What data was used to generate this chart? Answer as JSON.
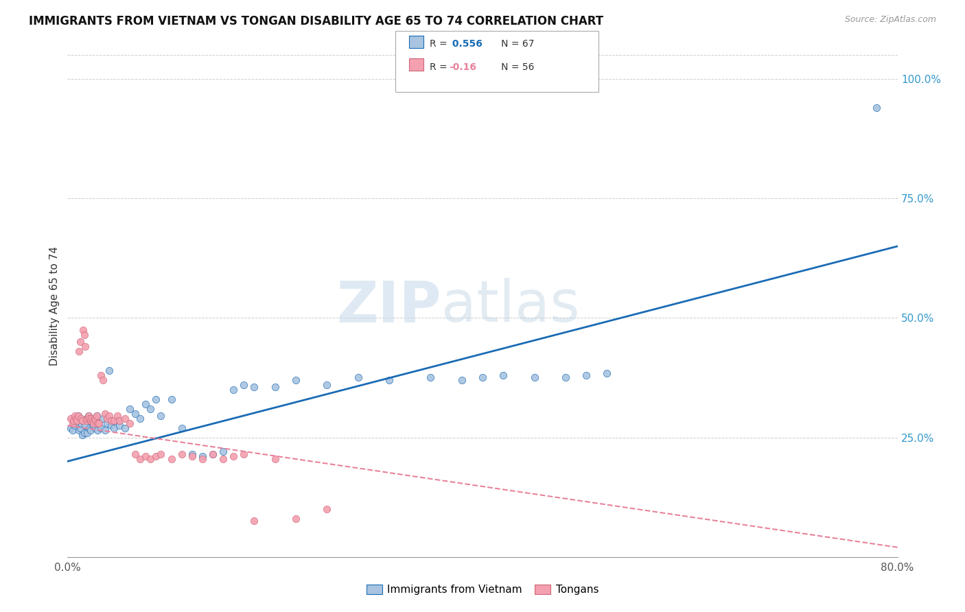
{
  "title": "IMMIGRANTS FROM VIETNAM VS TONGAN DISABILITY AGE 65 TO 74 CORRELATION CHART",
  "source": "Source: ZipAtlas.com",
  "ylabel": "Disability Age 65 to 74",
  "xlim": [
    0.0,
    0.8
  ],
  "ylim": [
    0.0,
    1.05
  ],
  "xtick_positions": [
    0.0,
    0.1,
    0.2,
    0.3,
    0.4,
    0.5,
    0.6,
    0.7,
    0.8
  ],
  "xticklabels": [
    "0.0%",
    "",
    "",
    "",
    "",
    "",
    "",
    "",
    "80.0%"
  ],
  "ytick_positions": [
    0.25,
    0.5,
    0.75,
    1.0
  ],
  "ytick_labels": [
    "25.0%",
    "50.0%",
    "75.0%",
    "100.0%"
  ],
  "vietnam_color": "#a8c4e0",
  "tongan_color": "#f4a0b0",
  "vietnam_line_color": "#1a6bb5",
  "tongan_line_color": "#e8829a",
  "R_vietnam": 0.556,
  "N_vietnam": 67,
  "R_tongan": -0.16,
  "N_tongan": 56,
  "legend_vietnam": "Immigrants from Vietnam",
  "legend_tongan": "Tongans",
  "watermark_zip": "ZIP",
  "watermark_atlas": "atlas",
  "vietnam_line_x0": 0.0,
  "vietnam_line_y0": 0.2,
  "vietnam_line_x1": 0.8,
  "vietnam_line_y1": 0.65,
  "tongan_line_x0": 0.0,
  "tongan_line_y0": 0.275,
  "tongan_line_x1": 0.8,
  "tongan_line_y1": 0.02,
  "vietnam_scatter_x": [
    0.003,
    0.005,
    0.006,
    0.007,
    0.008,
    0.009,
    0.01,
    0.011,
    0.012,
    0.013,
    0.014,
    0.015,
    0.016,
    0.017,
    0.018,
    0.019,
    0.02,
    0.021,
    0.022,
    0.023,
    0.024,
    0.025,
    0.026,
    0.027,
    0.028,
    0.029,
    0.03,
    0.032,
    0.034,
    0.036,
    0.038,
    0.04,
    0.042,
    0.045,
    0.048,
    0.05,
    0.055,
    0.06,
    0.065,
    0.07,
    0.075,
    0.08,
    0.085,
    0.09,
    0.1,
    0.11,
    0.12,
    0.13,
    0.14,
    0.15,
    0.16,
    0.17,
    0.18,
    0.2,
    0.22,
    0.25,
    0.28,
    0.31,
    0.35,
    0.38,
    0.4,
    0.42,
    0.45,
    0.48,
    0.5,
    0.52,
    0.78
  ],
  "vietnam_scatter_y": [
    0.27,
    0.265,
    0.28,
    0.275,
    0.29,
    0.285,
    0.295,
    0.265,
    0.27,
    0.28,
    0.255,
    0.285,
    0.26,
    0.275,
    0.29,
    0.26,
    0.295,
    0.27,
    0.265,
    0.285,
    0.28,
    0.275,
    0.285,
    0.27,
    0.295,
    0.265,
    0.28,
    0.27,
    0.29,
    0.265,
    0.28,
    0.39,
    0.275,
    0.27,
    0.285,
    0.275,
    0.27,
    0.31,
    0.3,
    0.29,
    0.32,
    0.31,
    0.33,
    0.295,
    0.33,
    0.27,
    0.215,
    0.21,
    0.215,
    0.22,
    0.35,
    0.36,
    0.355,
    0.355,
    0.37,
    0.36,
    0.375,
    0.37,
    0.375,
    0.37,
    0.375,
    0.38,
    0.375,
    0.375,
    0.38,
    0.385,
    0.94
  ],
  "tongan_scatter_x": [
    0.003,
    0.005,
    0.006,
    0.007,
    0.008,
    0.009,
    0.01,
    0.011,
    0.012,
    0.013,
    0.014,
    0.015,
    0.016,
    0.017,
    0.018,
    0.019,
    0.02,
    0.021,
    0.022,
    0.023,
    0.024,
    0.025,
    0.026,
    0.027,
    0.028,
    0.029,
    0.03,
    0.032,
    0.034,
    0.036,
    0.038,
    0.04,
    0.042,
    0.045,
    0.048,
    0.05,
    0.055,
    0.06,
    0.065,
    0.07,
    0.075,
    0.08,
    0.085,
    0.09,
    0.1,
    0.11,
    0.12,
    0.13,
    0.14,
    0.15,
    0.16,
    0.17,
    0.18,
    0.2,
    0.22,
    0.25
  ],
  "tongan_scatter_y": [
    0.29,
    0.28,
    0.285,
    0.295,
    0.29,
    0.285,
    0.295,
    0.43,
    0.45,
    0.29,
    0.285,
    0.475,
    0.465,
    0.44,
    0.285,
    0.29,
    0.295,
    0.29,
    0.285,
    0.29,
    0.285,
    0.28,
    0.29,
    0.285,
    0.295,
    0.28,
    0.28,
    0.38,
    0.37,
    0.3,
    0.29,
    0.295,
    0.285,
    0.285,
    0.295,
    0.285,
    0.29,
    0.28,
    0.215,
    0.205,
    0.21,
    0.205,
    0.21,
    0.215,
    0.205,
    0.215,
    0.21,
    0.205,
    0.215,
    0.205,
    0.21,
    0.215,
    0.075,
    0.205,
    0.08,
    0.1
  ]
}
